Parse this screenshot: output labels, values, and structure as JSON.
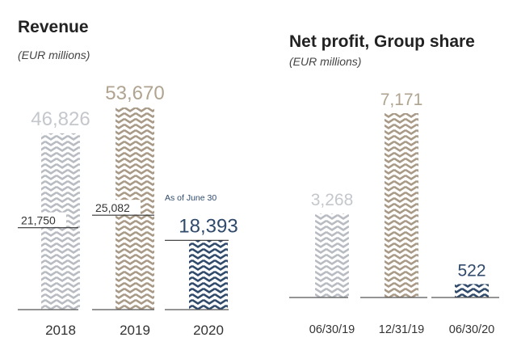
{
  "chart_data": [
    {
      "type": "bar",
      "title": "Revenue",
      "subtitle": "(EUR millions)",
      "categories": [
        "2018",
        "2019",
        "2020"
      ],
      "values": [
        46826,
        53670,
        18393
      ],
      "value_labels": [
        "46,826",
        "53,670",
        "18,393"
      ],
      "half_year_values": [
        21750,
        25082
      ],
      "half_year_labels": [
        "21,750",
        "25,082"
      ],
      "annotation": "As of June 30",
      "colors": [
        "#b8bcc2",
        "#a89a86",
        "#2f4a6b"
      ],
      "label_colors": [
        "#c4c7cc",
        "#b0a38f",
        "#2f4a6b"
      ],
      "ylim": [
        0,
        60000
      ]
    },
    {
      "type": "bar",
      "title": "Net profit, Group share",
      "subtitle": "(EUR millions)",
      "categories": [
        "06/30/19",
        "12/31/19",
        "06/30/20"
      ],
      "values": [
        3268,
        7171,
        522
      ],
      "value_labels": [
        "3,268",
        "7,171",
        "522"
      ],
      "colors": [
        "#b8bcc2",
        "#a89a86",
        "#2f4a6b"
      ],
      "label_colors": [
        "#c4c7cc",
        "#b0a38f",
        "#2f4a6b"
      ],
      "ylim": [
        0,
        8000
      ]
    }
  ]
}
